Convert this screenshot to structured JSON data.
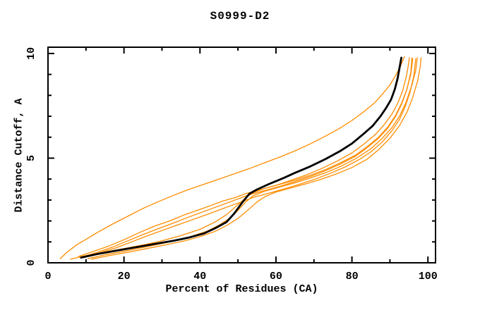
{
  "chart_data": {
    "type": "line",
    "title": "S0999-D2",
    "xlabel": "Percent of Residues (CA)",
    "ylabel": "Distance Cutoff, A",
    "x_axis": {
      "range": [
        0,
        102
      ],
      "major_ticks": [
        0,
        20,
        40,
        60,
        80,
        100
      ],
      "major_tick_labels": [
        "0",
        "20",
        "40",
        "60",
        "80",
        "100"
      ],
      "minor_ticks": [
        10,
        30,
        50,
        70,
        90
      ]
    },
    "y_axis": {
      "range": [
        0,
        10.3
      ],
      "major_ticks": [
        0,
        5,
        10
      ],
      "major_tick_labels": [
        "0",
        "5",
        "10"
      ],
      "minor_ticks": [
        1,
        2,
        3,
        4,
        6,
        7,
        8,
        9
      ]
    },
    "grid": false,
    "legend": "none",
    "colors": {
      "orange": "#ff8c00",
      "black": "#000000",
      "frame": "#000000",
      "background": "#ffffff"
    },
    "series": [
      {
        "id": "orange-1",
        "color": "#ff8c00",
        "width": 1.3,
        "points": [
          [
            3.2,
            0.2
          ],
          [
            5,
            0.5
          ],
          [
            7.5,
            0.85
          ],
          [
            10,
            1.12
          ],
          [
            13,
            1.45
          ],
          [
            17,
            1.85
          ],
          [
            21,
            2.22
          ],
          [
            25,
            2.6
          ],
          [
            29,
            2.92
          ],
          [
            33,
            3.22
          ],
          [
            37,
            3.5
          ],
          [
            41,
            3.75
          ],
          [
            45,
            4.0
          ],
          [
            49,
            4.25
          ],
          [
            53,
            4.5
          ],
          [
            57,
            4.78
          ],
          [
            61,
            5.05
          ],
          [
            65,
            5.35
          ],
          [
            69,
            5.68
          ],
          [
            73,
            6.05
          ],
          [
            77,
            6.45
          ],
          [
            80,
            6.8
          ],
          [
            83,
            7.2
          ],
          [
            86,
            7.65
          ],
          [
            88,
            8.05
          ],
          [
            90,
            8.5
          ],
          [
            91.5,
            8.95
          ],
          [
            92.8,
            9.4
          ],
          [
            93.8,
            9.85
          ]
        ]
      },
      {
        "id": "orange-2",
        "color": "#ff8c00",
        "width": 1.3,
        "points": [
          [
            5.9,
            0.17
          ],
          [
            10,
            0.35
          ],
          [
            15,
            0.52
          ],
          [
            20,
            0.68
          ],
          [
            25,
            0.85
          ],
          [
            30,
            1.05
          ],
          [
            35,
            1.3
          ],
          [
            40,
            1.6
          ],
          [
            44,
            1.95
          ],
          [
            47,
            2.3
          ],
          [
            49.5,
            2.7
          ],
          [
            52,
            3.1
          ],
          [
            54,
            3.35
          ],
          [
            57,
            3.55
          ],
          [
            61,
            3.75
          ],
          [
            65,
            3.95
          ],
          [
            69,
            4.18
          ],
          [
            73,
            4.45
          ],
          [
            77,
            4.78
          ],
          [
            81,
            5.15
          ],
          [
            84,
            5.55
          ],
          [
            87,
            6.0
          ],
          [
            89.5,
            6.5
          ],
          [
            91.5,
            7.05
          ],
          [
            93,
            7.6
          ],
          [
            94.5,
            8.3
          ],
          [
            95.5,
            9.1
          ],
          [
            95.8,
            9.8
          ]
        ]
      },
      {
        "id": "orange-3",
        "color": "#ff8c00",
        "width": 1.3,
        "points": [
          [
            8,
            0.3
          ],
          [
            12,
            0.55
          ],
          [
            16,
            0.8
          ],
          [
            20,
            1.1
          ],
          [
            24,
            1.44
          ],
          [
            28,
            1.75
          ],
          [
            32,
            2.0
          ],
          [
            36,
            2.3
          ],
          [
            40,
            2.55
          ],
          [
            43,
            2.75
          ],
          [
            46,
            2.95
          ],
          [
            49,
            3.1
          ],
          [
            52,
            3.3
          ],
          [
            56,
            3.5
          ],
          [
            60,
            3.7
          ],
          [
            64,
            3.95
          ],
          [
            68,
            4.2
          ],
          [
            72,
            4.5
          ],
          [
            76,
            4.85
          ],
          [
            80,
            5.25
          ],
          [
            83,
            5.65
          ],
          [
            86,
            6.1
          ],
          [
            88.5,
            6.6
          ],
          [
            90.5,
            7.1
          ],
          [
            92,
            7.6
          ],
          [
            93.3,
            8.2
          ],
          [
            94.3,
            8.9
          ],
          [
            94.9,
            9.5
          ],
          [
            95.1,
            9.8
          ]
        ]
      },
      {
        "id": "orange-4",
        "color": "#ff8c00",
        "width": 1.3,
        "points": [
          [
            9,
            0.28
          ],
          [
            13,
            0.5
          ],
          [
            17,
            0.75
          ],
          [
            21,
            1.05
          ],
          [
            25,
            1.35
          ],
          [
            29,
            1.63
          ],
          [
            33,
            1.9
          ],
          [
            37,
            2.18
          ],
          [
            41,
            2.45
          ],
          [
            44,
            2.65
          ],
          [
            47,
            2.85
          ],
          [
            50,
            3.05
          ],
          [
            53,
            3.25
          ],
          [
            57,
            3.45
          ],
          [
            61,
            3.65
          ],
          [
            65,
            3.88
          ],
          [
            69,
            4.12
          ],
          [
            73,
            4.4
          ],
          [
            77,
            4.72
          ],
          [
            81,
            5.1
          ],
          [
            84,
            5.5
          ],
          [
            87,
            5.95
          ],
          [
            89.5,
            6.45
          ],
          [
            91.5,
            7.0
          ],
          [
            93,
            7.55
          ],
          [
            94.3,
            8.2
          ],
          [
            95.5,
            9.0
          ],
          [
            96,
            9.75
          ]
        ]
      },
      {
        "id": "orange-5",
        "color": "#ff8c00",
        "width": 1.3,
        "points": [
          [
            9.5,
            0.25
          ],
          [
            14,
            0.5
          ],
          [
            18,
            0.72
          ],
          [
            22,
            1.0
          ],
          [
            26,
            1.28
          ],
          [
            30,
            1.54
          ],
          [
            34,
            1.8
          ],
          [
            38,
            2.06
          ],
          [
            42,
            2.32
          ],
          [
            45,
            2.52
          ],
          [
            48,
            2.72
          ],
          [
            51,
            2.92
          ],
          [
            54,
            3.12
          ],
          [
            58,
            3.32
          ],
          [
            62,
            3.52
          ],
          [
            66,
            3.74
          ],
          [
            70,
            3.98
          ],
          [
            74,
            4.25
          ],
          [
            78,
            4.56
          ],
          [
            82,
            4.94
          ],
          [
            85,
            5.3
          ],
          [
            88,
            5.78
          ],
          [
            90.5,
            6.3
          ],
          [
            92.5,
            6.85
          ],
          [
            94,
            7.45
          ],
          [
            95.3,
            8.15
          ],
          [
            96.3,
            8.95
          ],
          [
            96.8,
            9.75
          ]
        ]
      },
      {
        "id": "orange-6",
        "color": "#ff8c00",
        "width": 1.3,
        "points": [
          [
            10.5,
            0.2
          ],
          [
            15,
            0.38
          ],
          [
            20,
            0.55
          ],
          [
            25,
            0.73
          ],
          [
            30,
            0.92
          ],
          [
            34,
            1.08
          ],
          [
            38,
            1.28
          ],
          [
            42,
            1.52
          ],
          [
            45,
            1.8
          ],
          [
            48,
            2.15
          ],
          [
            50,
            2.5
          ],
          [
            52,
            2.9
          ],
          [
            54,
            3.2
          ],
          [
            57,
            3.42
          ],
          [
            61,
            3.62
          ],
          [
            65,
            3.82
          ],
          [
            69,
            4.05
          ],
          [
            73,
            4.3
          ],
          [
            77,
            4.6
          ],
          [
            81,
            4.98
          ],
          [
            85,
            5.45
          ],
          [
            88,
            5.95
          ],
          [
            90.5,
            6.45
          ],
          [
            92.5,
            7.0
          ],
          [
            94.2,
            7.65
          ],
          [
            95.8,
            8.5
          ],
          [
            96.8,
            9.2
          ],
          [
            97.2,
            9.8
          ]
        ]
      },
      {
        "id": "orange-7",
        "color": "#ff8c00",
        "width": 1.3,
        "points": [
          [
            11.5,
            0.17
          ],
          [
            16,
            0.34
          ],
          [
            21,
            0.5
          ],
          [
            26,
            0.68
          ],
          [
            31,
            0.86
          ],
          [
            36,
            1.05
          ],
          [
            40,
            1.25
          ],
          [
            44,
            1.5
          ],
          [
            47,
            1.78
          ],
          [
            50,
            2.12
          ],
          [
            52.5,
            2.5
          ],
          [
            55,
            2.9
          ],
          [
            57,
            3.15
          ],
          [
            60,
            3.38
          ],
          [
            64,
            3.58
          ],
          [
            68,
            3.78
          ],
          [
            72,
            4.0
          ],
          [
            76,
            4.25
          ],
          [
            80,
            4.55
          ],
          [
            84,
            4.95
          ],
          [
            87,
            5.4
          ],
          [
            90,
            5.95
          ],
          [
            92.5,
            6.55
          ],
          [
            94.5,
            7.2
          ],
          [
            96,
            7.9
          ],
          [
            97.3,
            8.7
          ],
          [
            98,
            9.4
          ],
          [
            98.2,
            9.8
          ]
        ]
      },
      {
        "id": "black-main",
        "color": "#000000",
        "width": 2.8,
        "points": [
          [
            8.7,
            0.25
          ],
          [
            13,
            0.42
          ],
          [
            18,
            0.58
          ],
          [
            24,
            0.77
          ],
          [
            29,
            0.93
          ],
          [
            33,
            1.05
          ],
          [
            37,
            1.2
          ],
          [
            41,
            1.4
          ],
          [
            44,
            1.65
          ],
          [
            47,
            1.95
          ],
          [
            49,
            2.35
          ],
          [
            51,
            2.85
          ],
          [
            53,
            3.3
          ],
          [
            55,
            3.5
          ],
          [
            58,
            3.75
          ],
          [
            62,
            4.05
          ],
          [
            65,
            4.3
          ],
          [
            69,
            4.6
          ],
          [
            73,
            4.95
          ],
          [
            77,
            5.35
          ],
          [
            80,
            5.7
          ],
          [
            83,
            6.15
          ],
          [
            85.5,
            6.55
          ],
          [
            87.5,
            7.0
          ],
          [
            89,
            7.4
          ],
          [
            90.3,
            7.8
          ],
          [
            91.3,
            8.3
          ],
          [
            92,
            8.8
          ],
          [
            92.5,
            9.3
          ],
          [
            93,
            9.8
          ]
        ]
      }
    ]
  }
}
